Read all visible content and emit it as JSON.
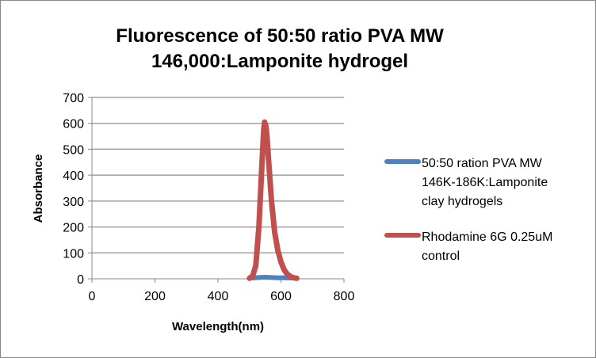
{
  "chart_data": {
    "type": "line",
    "title": [
      "Fluorescence of 50:50 ratio PVA MW",
      "146,000:Lamponite hydrogel"
    ],
    "xlabel": "Wavelength(nm)",
    "ylabel": "Absorbance",
    "xlim": [
      0,
      800
    ],
    "ylim": [
      0,
      700
    ],
    "xticks": [
      "0",
      "200",
      "400",
      "600",
      "800"
    ],
    "yticks": [
      "0",
      "100",
      "200",
      "300",
      "400",
      "500",
      "600",
      "700"
    ],
    "grid": "horizontal",
    "legend_position": "right",
    "series": [
      {
        "name": "50:50 ration PVA MW 146K-186K:Lamponite clay hydrogels",
        "legend_lines": [
          "50:50 ration PVA MW",
          "146K-186K:Lamponite",
          "clay hydrogels"
        ],
        "color": "#4f81bd",
        "x": [
          510,
          530,
          550,
          570,
          590,
          610,
          630,
          650
        ],
        "y": [
          3,
          5,
          6,
          5,
          4,
          4,
          3,
          3
        ]
      },
      {
        "name": "Rhodamine 6G 0.25uM control",
        "legend_lines": [
          "Rhodamine 6G 0.25uM",
          "control"
        ],
        "color": "#c0504d",
        "x": [
          500,
          510,
          520,
          530,
          540,
          545,
          548,
          552,
          555,
          560,
          570,
          580,
          590,
          600,
          610,
          620,
          630,
          640,
          650
        ],
        "y": [
          2,
          10,
          50,
          200,
          450,
          570,
          605,
          590,
          560,
          470,
          300,
          180,
          110,
          65,
          35,
          18,
          9,
          4,
          2
        ]
      }
    ]
  }
}
